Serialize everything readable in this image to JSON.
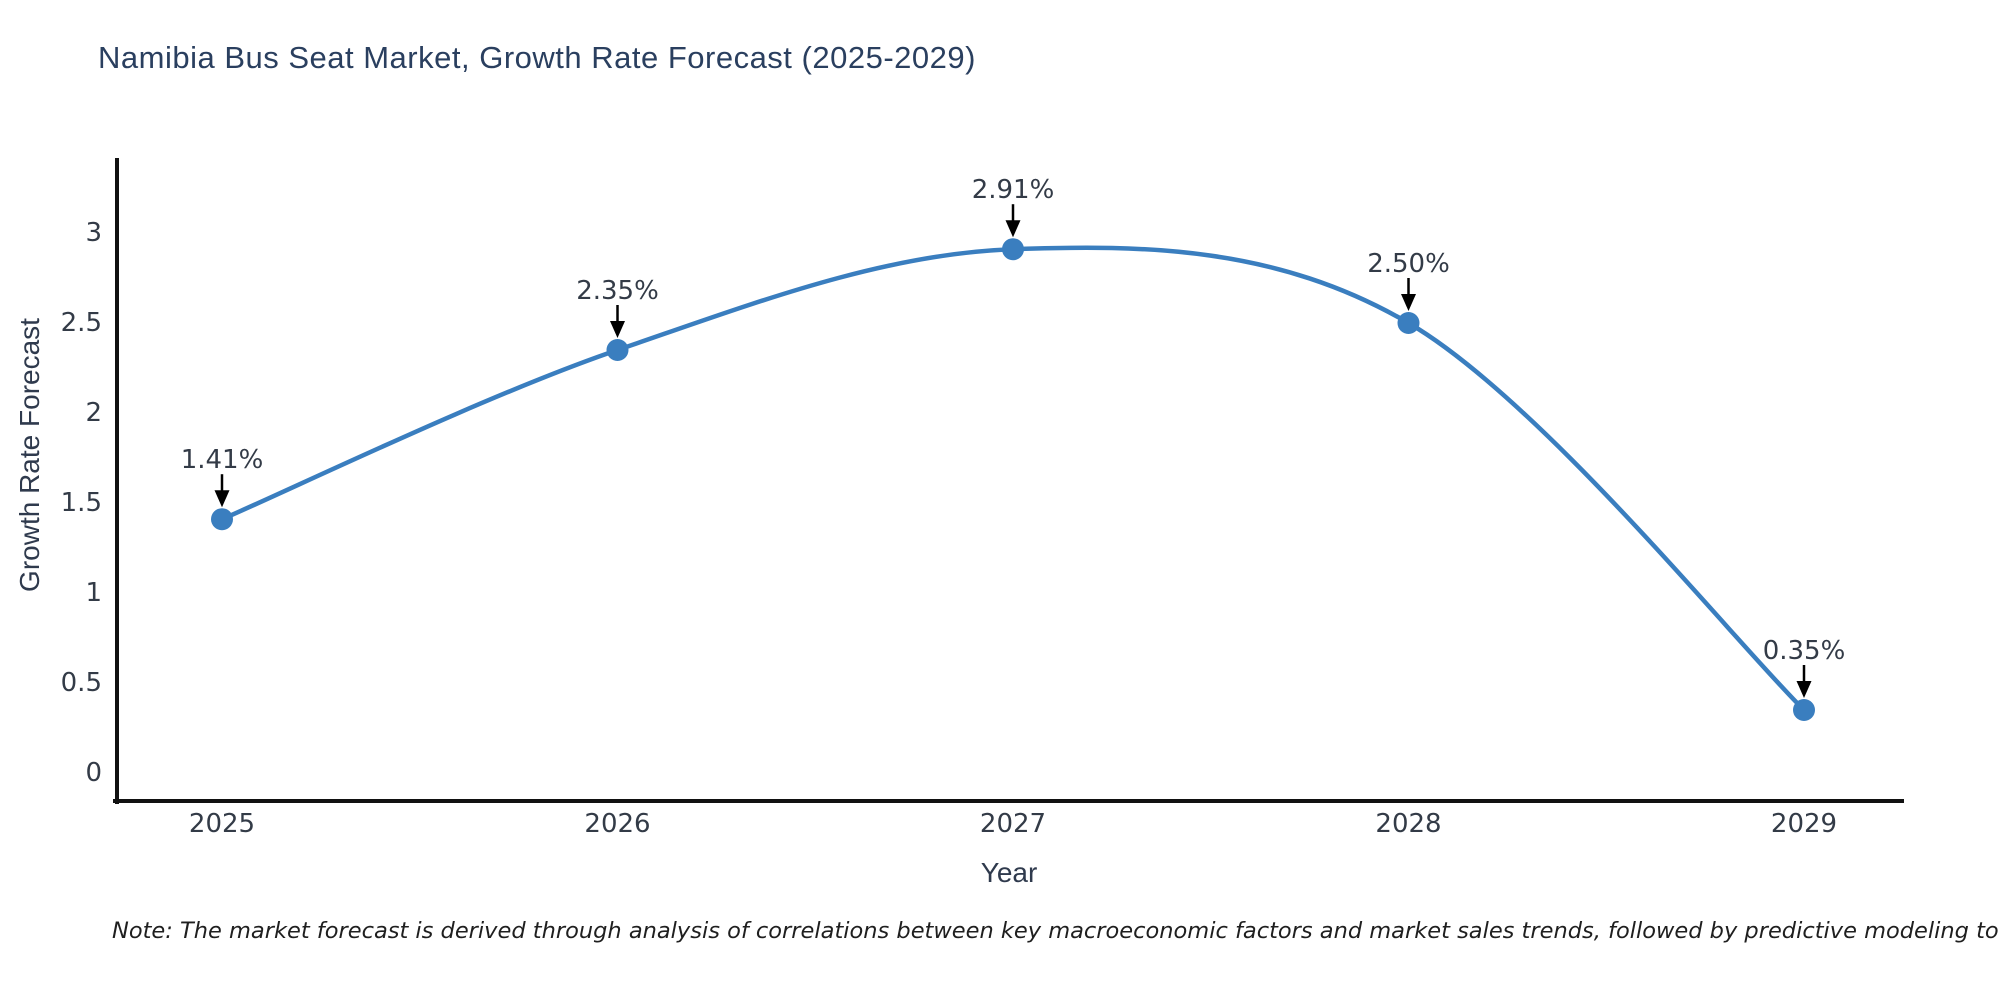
{
  "title": "Namibia Bus Seat Market, Growth Rate Forecast (2025-2029)",
  "note": "Note: The market forecast is derived through analysis of correlations between key macroeconomic factors and market sales trends, followed by predictive modeling to project future sales",
  "chart_data": {
    "type": "line",
    "title": "Namibia Bus Seat Market, Growth Rate Forecast (2025-2029)",
    "xlabel": "Year",
    "ylabel": "Growth Rate Forecast",
    "categories": [
      2025,
      2026,
      2027,
      2028,
      2029
    ],
    "values": [
      1.41,
      2.35,
      2.91,
      2.5,
      0.35
    ],
    "point_labels": [
      "1.41%",
      "2.35%",
      "2.91%",
      "2.50%",
      "0.35%"
    ],
    "yticks": [
      "0",
      "0.5",
      "1",
      "1.5",
      "2",
      "2.5",
      "3"
    ],
    "ytick_values": [
      0,
      0.5,
      1,
      1.5,
      2,
      2.5,
      3
    ],
    "ylim": [
      -0.18,
      3.41
    ],
    "xlim": [
      2024.73,
      2029.25
    ],
    "line_shape": "spline",
    "grid": false,
    "legend": "none",
    "annotation_style": "value label with black down-arrow to marker",
    "colors": {
      "line": "#3a7ebf",
      "marker": "#3a7ebf",
      "arrow": "#000000",
      "axis_line": "#111111",
      "title_text": "#2a3f5f",
      "axis_title_text": "#2f3a4d",
      "tick_text": "#333b47",
      "annotation_text": "#333b47",
      "note_text": "#1f1f1f"
    }
  }
}
